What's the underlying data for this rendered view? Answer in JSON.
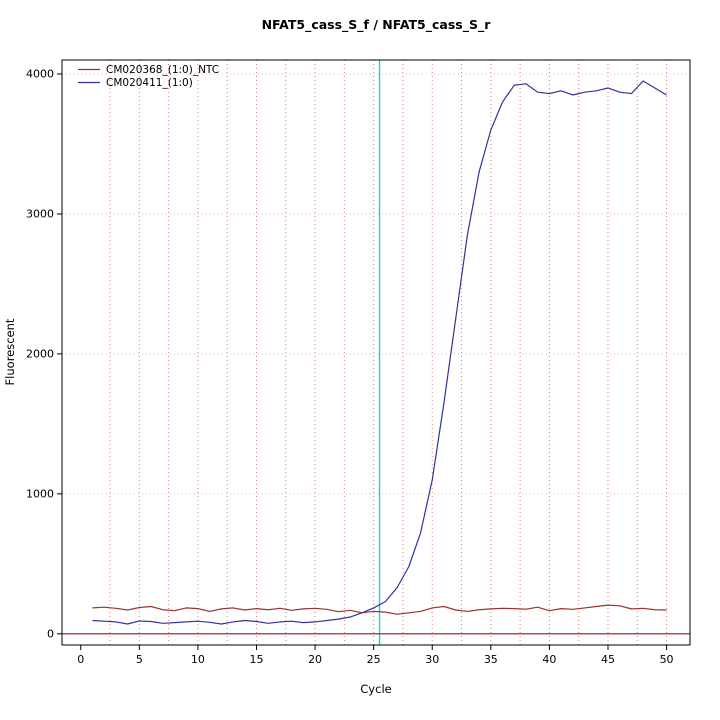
{
  "chart_data": {
    "type": "line",
    "title": "NFAT5_cass_S_f / NFAT5_cass_S_r",
    "xlabel": "Cycle",
    "ylabel": "Fluorescent",
    "xlim": [
      -1.6,
      52
    ],
    "ylim": [
      -80,
      4100
    ],
    "xticks": [
      0,
      5,
      10,
      15,
      20,
      25,
      30,
      35,
      40,
      45,
      50
    ],
    "yticks": [
      0,
      1000,
      2000,
      3000,
      4000
    ],
    "grid": {
      "on": true,
      "x_start": 2.5,
      "x_step": 2.5,
      "x_end": 50,
      "color": "#cc8888",
      "style": "dotted"
    },
    "threshold_line": {
      "x": 25.5,
      "color": "#00dddd"
    },
    "baseline": {
      "y": 0,
      "color": "#8b1a1a"
    },
    "legend_position": "top-left",
    "x": [
      1,
      2,
      3,
      4,
      5,
      6,
      7,
      8,
      9,
      10,
      11,
      12,
      13,
      14,
      15,
      16,
      17,
      18,
      19,
      20,
      21,
      22,
      23,
      24,
      25,
      26,
      27,
      28,
      29,
      30,
      31,
      32,
      33,
      34,
      35,
      36,
      37,
      38,
      39,
      40,
      41,
      42,
      43,
      44,
      45,
      46,
      47,
      48,
      49,
      50
    ],
    "series": [
      {
        "name": "CM020368_(1:0)_NTC",
        "color": "#993333",
        "values": [
          185,
          190,
          182,
          170,
          188,
          195,
          172,
          165,
          185,
          180,
          160,
          178,
          185,
          170,
          180,
          172,
          182,
          168,
          178,
          182,
          175,
          158,
          168,
          150,
          160,
          155,
          140,
          150,
          160,
          185,
          195,
          170,
          160,
          172,
          178,
          182,
          180,
          176,
          190,
          165,
          180,
          175,
          185,
          195,
          205,
          200,
          178,
          182,
          172,
          170
        ]
      },
      {
        "name": "CM020411_(1:0)",
        "color": "#333399",
        "values": [
          95,
          90,
          85,
          70,
          92,
          88,
          75,
          80,
          85,
          90,
          82,
          70,
          85,
          95,
          88,
          75,
          85,
          90,
          80,
          85,
          95,
          105,
          120,
          150,
          185,
          230,
          330,
          480,
          720,
          1100,
          1650,
          2250,
          2850,
          3300,
          3600,
          3800,
          3920,
          3930,
          3870,
          3860,
          3880,
          3850,
          3870,
          3880,
          3900,
          3870,
          3860,
          3950,
          3900,
          3850
        ]
      }
    ]
  }
}
